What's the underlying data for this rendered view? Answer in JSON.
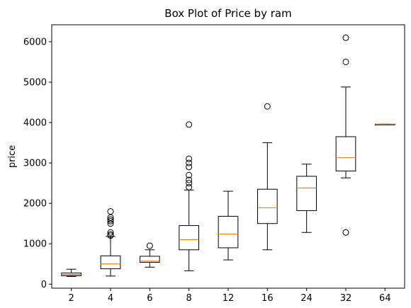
{
  "chart_data": {
    "type": "box",
    "title": "Box Plot of Price by ram",
    "xlabel": "",
    "ylabel": "price",
    "categories": [
      "2",
      "4",
      "6",
      "8",
      "12",
      "16",
      "24",
      "32",
      "64"
    ],
    "ylim": [
      -100,
      6420
    ],
    "yticks": [
      0,
      1000,
      2000,
      3000,
      4000,
      5000,
      6000
    ],
    "grid": false,
    "colors": {
      "box": "#000000",
      "median": "#ff7f0e",
      "background": "#ffffff"
    },
    "boxes": [
      {
        "category": "2",
        "whisker_low": 190,
        "q1": 210,
        "median": 240,
        "q3": 275,
        "whisker_high": 370,
        "outliers": []
      },
      {
        "category": "4",
        "whisker_low": 200,
        "q1": 380,
        "median": 500,
        "q3": 700,
        "whisker_high": 1180,
        "outliers": [
          1200,
          1230,
          1280,
          1500,
          1560,
          1600,
          1650,
          1800
        ]
      },
      {
        "category": "6",
        "whisker_low": 420,
        "q1": 540,
        "median": 570,
        "q3": 690,
        "whisker_high": 850,
        "outliers": [
          950
        ]
      },
      {
        "category": "8",
        "whisker_low": 330,
        "q1": 850,
        "median": 1100,
        "q3": 1450,
        "whisker_high": 2330,
        "outliers": [
          2400,
          2500,
          2580,
          2700,
          2900,
          3000,
          3100,
          3950
        ]
      },
      {
        "category": "12",
        "whisker_low": 600,
        "q1": 900,
        "median": 1240,
        "q3": 1680,
        "whisker_high": 2300,
        "outliers": []
      },
      {
        "category": "16",
        "whisker_low": 850,
        "q1": 1500,
        "median": 1890,
        "q3": 2350,
        "whisker_high": 3500,
        "outliers": [
          4400
        ]
      },
      {
        "category": "24",
        "whisker_low": 1280,
        "q1": 1820,
        "median": 2380,
        "q3": 2670,
        "whisker_high": 2970,
        "outliers": []
      },
      {
        "category": "32",
        "whisker_low": 2630,
        "q1": 2800,
        "median": 3130,
        "q3": 3650,
        "whisker_high": 4880,
        "outliers": [
          1280,
          5500,
          6100
        ]
      },
      {
        "category": "64",
        "whisker_low": 3960,
        "q1": 3960,
        "median": 3960,
        "q3": 3960,
        "whisker_high": 3960,
        "outliers": []
      }
    ]
  }
}
